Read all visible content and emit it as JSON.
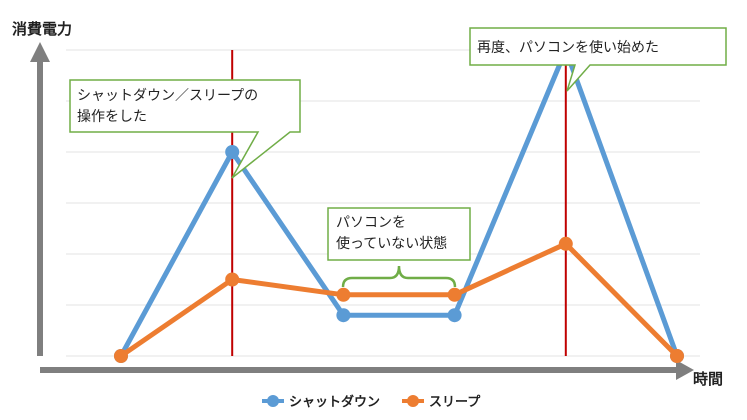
{
  "chart_data": {
    "type": "line",
    "ylabel": "消費電力",
    "xlabel": "時間",
    "x": [
      0,
      1,
      2,
      3,
      4,
      5
    ],
    "ylim": [
      0,
      6
    ],
    "grid": true,
    "legend_position": "bottom",
    "series": [
      {
        "name": "シャットダウン",
        "color": "#5B9BD5",
        "values": [
          0,
          4,
          0.8,
          0.8,
          6,
          0
        ]
      },
      {
        "name": "スリープ",
        "color": "#ED7D31",
        "values": [
          0,
          1.5,
          1.2,
          1.2,
          2.2,
          0
        ]
      }
    ],
    "markers_at_x": [
      1,
      4
    ],
    "marker_color": "#C00000",
    "annotations": [
      {
        "lines": [
          "シャットダウン／スリープの",
          "操作をした"
        ]
      },
      {
        "lines": [
          "再度、パソコンを使い始めた"
        ]
      },
      {
        "lines": [
          "パソコンを",
          "使っていない状態"
        ]
      }
    ],
    "annotation_border_color": "#70AD47"
  }
}
